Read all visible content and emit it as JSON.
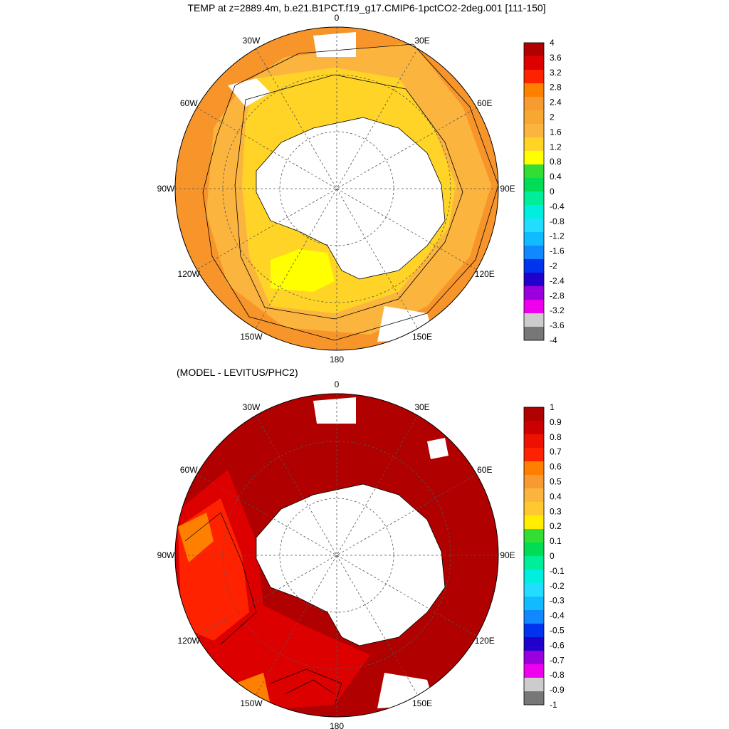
{
  "figure": {
    "title": "TEMP at z=2889.4m, b.e21.B1PCT.f19_g17.CMIP6-1pctCO2-2deg.001 [111-150]",
    "subtitle": "(MODEL - LEVITUS/PHC2)"
  },
  "longitude_labels": [
    "0",
    "30E",
    "60E",
    "90E",
    "120E",
    "150E",
    "180",
    "150W",
    "120W",
    "90W",
    "60W",
    "30W"
  ],
  "panels": [
    {
      "name": "model-temperature",
      "projection": "south-polar-stereographic",
      "colorbar": {
        "labels": [
          "4",
          "3.6",
          "3.2",
          "2.8",
          "2.4",
          "2",
          "1.6",
          "1.2",
          "0.8",
          "0.4",
          "0",
          "-0.4",
          "-0.8",
          "-1.2",
          "-1.6",
          "-2",
          "-2.4",
          "-2.8",
          "-3.2",
          "-3.6",
          "-4"
        ],
        "colors": [
          "#b00000",
          "#dd0000",
          "#ff2200",
          "#ff8000",
          "#f79a30",
          "#f7a830",
          "#fbb53f",
          "#ffd426",
          "#ffff00",
          "#33dd33",
          "#00dd55",
          "#00ee99",
          "#00eedd",
          "#22ddff",
          "#11bbff",
          "#1188ff",
          "#0033ee",
          "#2200cc",
          "#9900dd",
          "#ee00ee",
          "#cccccc",
          "#777777"
        ]
      },
      "field_colors": {
        "outer": "#f7952a",
        "middle": "#fbb53f",
        "inner": "#ffd426",
        "core": "#ffff00",
        "land": "#ffffff"
      }
    },
    {
      "name": "model-minus-levitus",
      "projection": "south-polar-stereographic",
      "colorbar": {
        "labels": [
          "1",
          "0.9",
          "0.8",
          "0.7",
          "0.6",
          "0.5",
          "0.4",
          "0.3",
          "0.2",
          "0.1",
          "0",
          "-0.1",
          "-0.2",
          "-0.3",
          "-0.4",
          "-0.5",
          "-0.6",
          "-0.7",
          "-0.8",
          "-0.9",
          "-1"
        ],
        "colors": [
          "#b00000",
          "#cc0000",
          "#ee1100",
          "#ff2200",
          "#ff8000",
          "#f79a30",
          "#fbb53f",
          "#ffc830",
          "#ffee00",
          "#33dd33",
          "#00dd55",
          "#00ee99",
          "#00eedd",
          "#22ddff",
          "#11bbff",
          "#1188ff",
          "#0033ee",
          "#2200cc",
          "#9900dd",
          "#ee00ee",
          "#cccccc",
          "#777777"
        ]
      },
      "field_colors": {
        "outer": "#b00000",
        "band1": "#dd0000",
        "band2": "#ff2200",
        "band3": "#ff8000",
        "land": "#ffffff"
      }
    }
  ]
}
